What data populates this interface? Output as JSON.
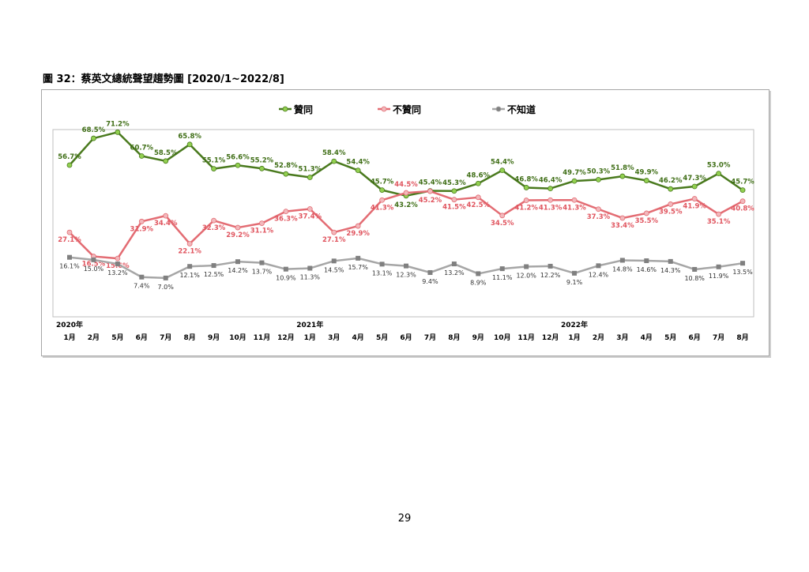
{
  "figure": {
    "title": "圖 32：蔡英文總統聲望趨勢圖 [2020/1~2022/8]"
  },
  "page": {
    "number": "29"
  },
  "chart_data": {
    "type": "line",
    "categories": [
      "1月",
      "2月",
      "5月",
      "6月",
      "7月",
      "8月",
      "9月",
      "10月",
      "11月",
      "12月",
      "1月",
      "3月",
      "4月",
      "5月",
      "6月",
      "7月",
      "8月",
      "9月",
      "10月",
      "11月",
      "12月",
      "1月",
      "2月",
      "3月",
      "4月",
      "5月",
      "6月",
      "7月",
      "8月"
    ],
    "year_labels": [
      {
        "label": "2020年",
        "index": 0
      },
      {
        "label": "2021年",
        "index": 10
      },
      {
        "label": "2022年",
        "index": 21
      }
    ],
    "legend_position": "top",
    "grid": false,
    "ylim": [
      0,
      80
    ],
    "series": [
      {
        "name": "贊同",
        "color": "#4a7a1e",
        "marker_color": "#92d050",
        "label_color": "#3f6e16",
        "values": [
          56.7,
          68.5,
          71.2,
          60.7,
          58.5,
          65.8,
          55.1,
          56.6,
          55.2,
          52.8,
          51.3,
          58.4,
          54.4,
          45.7,
          43.2,
          45.4,
          45.3,
          48.6,
          54.4,
          46.8,
          46.4,
          49.7,
          50.3,
          51.8,
          49.9,
          46.2,
          47.3,
          53.0,
          45.7
        ],
        "labels": [
          "56.7%",
          "68.5%",
          "71.2%",
          "60.7%",
          "58.5%",
          "65.8%",
          "55.1%",
          "56.6%",
          "55.2%",
          "52.8%",
          "51.3%",
          "58.4%",
          "54.4%",
          "45.7%",
          "43.2%",
          "45.4%",
          "45.3%",
          "48.6%",
          "54.4%",
          "46.8%",
          "46.4%",
          "49.7%",
          "50.3%",
          "51.8%",
          "49.9%",
          "46.2%",
          "47.3%",
          "53.0%",
          "45.7%"
        ]
      },
      {
        "name": "不贊同",
        "color": "#e36c73",
        "marker_color": "#f2b8bc",
        "label_color": "#e0555f",
        "values": [
          27.1,
          16.5,
          15.6,
          31.9,
          34.4,
          22.1,
          32.3,
          29.2,
          31.1,
          36.3,
          37.4,
          27.1,
          29.9,
          41.3,
          44.5,
          45.2,
          41.5,
          42.5,
          34.5,
          41.2,
          41.3,
          41.3,
          37.3,
          33.4,
          35.5,
          39.5,
          41.9,
          35.1,
          40.8
        ],
        "labels": [
          "27.1%",
          "16.5%",
          "15.6%",
          "31.9%",
          "34.4%",
          "22.1%",
          "32.3%",
          "29.2%",
          "31.1%",
          "36.3%",
          "37.4%",
          "27.1%",
          "29.9%",
          "41.3%",
          "44.5%",
          "45.2%",
          "41.5%",
          "42.5%",
          "34.5%",
          "41.2%",
          "41.3%",
          "41.3%",
          "37.3%",
          "33.4%",
          "35.5%",
          "39.5%",
          "41.9%",
          "35.1%",
          "40.8%"
        ]
      },
      {
        "name": "不知道",
        "color": "#a6a6a6",
        "marker_color": "#808080",
        "label_color": "#333333",
        "values": [
          16.1,
          15.0,
          13.2,
          7.4,
          7.0,
          12.1,
          12.5,
          14.2,
          13.7,
          10.9,
          11.3,
          14.5,
          15.7,
          13.1,
          12.3,
          9.4,
          13.2,
          8.9,
          11.1,
          12.0,
          12.2,
          9.1,
          12.4,
          14.8,
          14.6,
          14.3,
          10.8,
          11.9,
          13.5
        ],
        "labels": [
          "16.1%",
          "15.0%",
          "13.2%",
          "7.4%",
          "7.0%",
          "12.1%",
          "12.5%",
          "14.2%",
          "13.7%",
          "10.9%",
          "11.3%",
          "14.5%",
          "15.7%",
          "13.1%",
          "12.3%",
          "9.4%",
          "13.2%",
          "8.9%",
          "11.1%",
          "12.0%",
          "12.2%",
          "9.1%",
          "12.4%",
          "14.8%",
          "14.6%",
          "14.3%",
          "10.8%",
          "11.9%",
          "13.5%"
        ]
      }
    ]
  }
}
